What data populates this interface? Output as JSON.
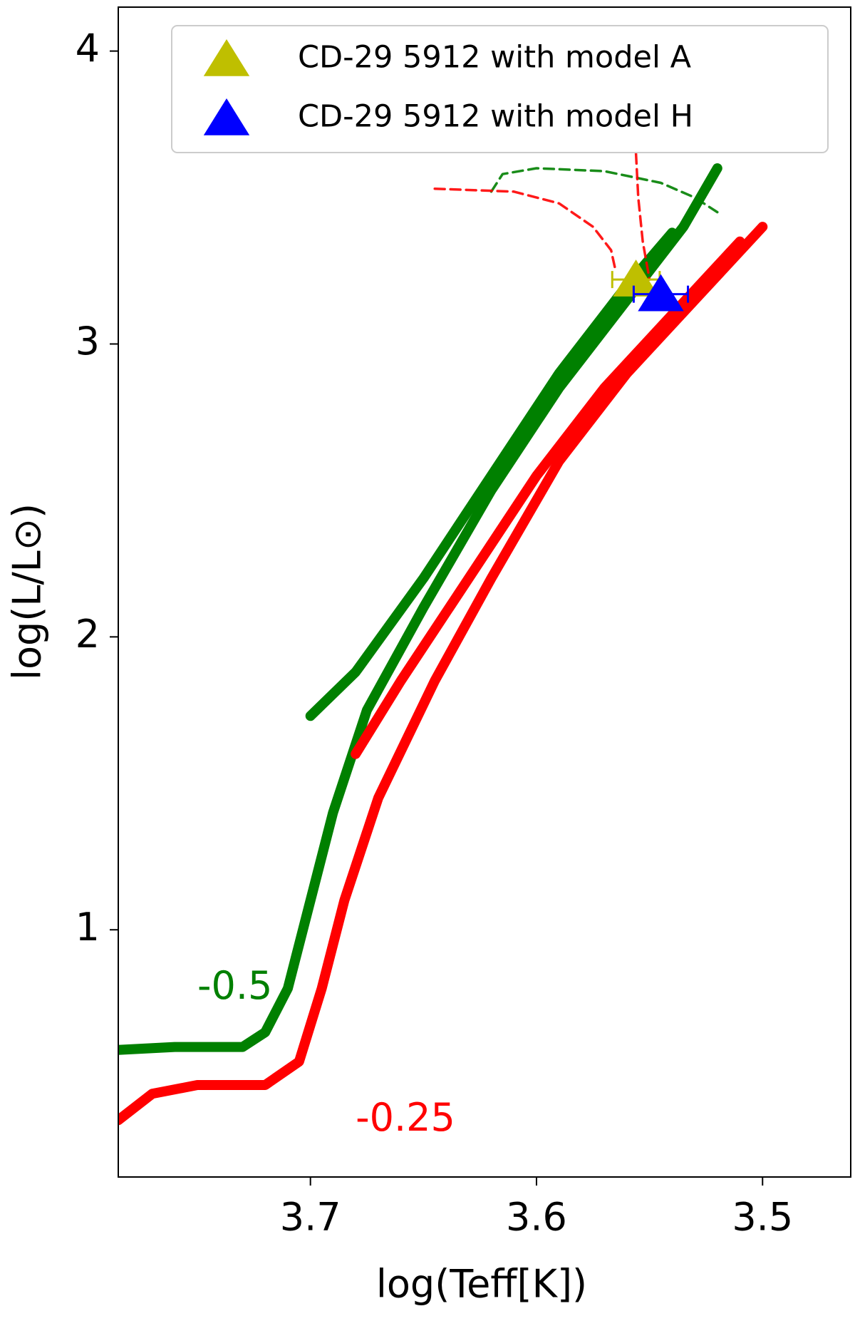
{
  "chart_data": {
    "type": "line",
    "xlabel": "log(Teff[K])",
    "ylabel": "log(L/L⊙)",
    "xlim": [
      3.785,
      3.461
    ],
    "ylim": [
      0.156,
      4.15
    ],
    "xticks": [
      3.7,
      3.6,
      3.5
    ],
    "yticks": [
      1,
      2,
      3,
      4
    ],
    "grid": false,
    "legend": "upper right",
    "tracks": [
      {
        "color": "#008000",
        "dashed": false,
        "x": [
          3.785,
          3.76,
          3.73,
          3.72,
          3.71,
          3.7,
          3.69,
          3.675,
          3.65,
          3.62,
          3.59,
          3.56,
          3.535,
          3.52
        ],
        "y": [
          0.59,
          0.6,
          0.6,
          0.65,
          0.8,
          1.1,
          1.4,
          1.75,
          2.1,
          2.5,
          2.85,
          3.15,
          3.4,
          3.6
        ]
      },
      {
        "color": "#008000",
        "dashed": false,
        "x": [
          3.7,
          3.68,
          3.65,
          3.62,
          3.59,
          3.56,
          3.54
        ],
        "y": [
          1.73,
          1.88,
          2.2,
          2.55,
          2.9,
          3.2,
          3.38
        ]
      },
      {
        "color": "#ff0000",
        "dashed": false,
        "x": [
          3.785,
          3.77,
          3.75,
          3.72,
          3.705,
          3.695,
          3.685,
          3.67,
          3.645,
          3.62,
          3.59,
          3.56,
          3.53,
          3.5
        ],
        "y": [
          0.35,
          0.44,
          0.47,
          0.47,
          0.55,
          0.8,
          1.1,
          1.45,
          1.85,
          2.2,
          2.6,
          2.9,
          3.15,
          3.4
        ]
      },
      {
        "color": "#ff0000",
        "dashed": false,
        "x": [
          3.68,
          3.66,
          3.63,
          3.6,
          3.57,
          3.54,
          3.51
        ],
        "y": [
          1.6,
          1.85,
          2.2,
          2.55,
          2.85,
          3.1,
          3.35
        ]
      },
      {
        "color": "#008000",
        "dashed": true,
        "x": [
          3.62,
          3.615,
          3.6,
          3.57,
          3.545,
          3.53,
          3.52
        ],
        "y": [
          3.52,
          3.58,
          3.6,
          3.59,
          3.55,
          3.5,
          3.45
        ]
      },
      {
        "color": "#ff0000",
        "dashed": true,
        "x": [
          3.645,
          3.61,
          3.59,
          3.575,
          3.567,
          3.565
        ],
        "y": [
          3.53,
          3.52,
          3.48,
          3.4,
          3.32,
          3.25
        ]
      },
      {
        "color": "#ff0000",
        "dashed": true,
        "x": [
          3.556,
          3.555,
          3.553,
          3.55
        ],
        "y": [
          3.65,
          3.5,
          3.35,
          3.22
        ]
      }
    ],
    "points": [
      {
        "name": "CD-29 5912 with model A",
        "color": "#bfbf00",
        "x": 3.556,
        "y": 3.22,
        "xerr": 0.0105
      },
      {
        "name": "CD-29 5912 with model H",
        "color": "#0000ff",
        "x": 3.545,
        "y": 3.17,
        "xerr": 0.012
      }
    ],
    "annotations": [
      {
        "text": "-0.5",
        "color": "#008000",
        "x": 3.75,
        "y": 0.8
      },
      {
        "text": "-0.25",
        "color": "#ff0000",
        "x": 3.68,
        "y": 0.35
      }
    ]
  }
}
